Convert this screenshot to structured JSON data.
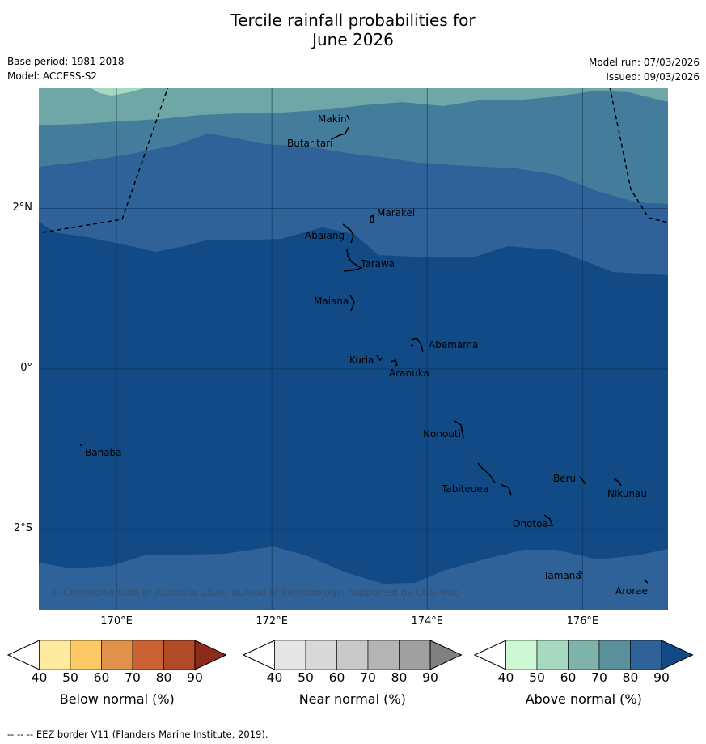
{
  "title": {
    "line1": "Tercile rainfall probabilities for",
    "line2": "June 2026"
  },
  "meta": {
    "base_period": "Base period: 1981-2018",
    "model": "Model: ACCESS-S2",
    "model_run": "Model run: 07/03/2026",
    "issued": "Issued: 09/03/2026"
  },
  "map": {
    "lon_range": [
      169,
      177.1
    ],
    "lat_range": [
      -3.0,
      3.5
    ],
    "lat_ticks": [
      {
        "lat": 2,
        "label": "2°N"
      },
      {
        "lat": 0,
        "label": "0°"
      },
      {
        "lat": -2,
        "label": "2°S"
      }
    ],
    "lon_ticks": [
      {
        "lon": 170,
        "label": "170°E"
      },
      {
        "lon": 172,
        "label": "172°E"
      },
      {
        "lon": 174,
        "label": "174°E"
      },
      {
        "lon": 176,
        "label": "176°E"
      }
    ],
    "colors": {
      "above_90": "#124a85",
      "above_80": "#2e6298",
      "above_70": "#437d9b",
      "above_60": "#6fa6a6",
      "above_50": "#a6d9bf"
    },
    "islands": [
      {
        "name": "Makin"
      },
      {
        "name": "Butaritari"
      },
      {
        "name": "Marakei"
      },
      {
        "name": "Abaiang"
      },
      {
        "name": "Tarawa"
      },
      {
        "name": "Maiana"
      },
      {
        "name": "Abemama"
      },
      {
        "name": "Kuria"
      },
      {
        "name": "Aranuka"
      },
      {
        "name": "Nonouti"
      },
      {
        "name": "Banaba"
      },
      {
        "name": "Beru"
      },
      {
        "name": "Tabiteuea"
      },
      {
        "name": "Nikunau"
      },
      {
        "name": "Onotoa"
      },
      {
        "name": "Tamana"
      },
      {
        "name": "Arorae"
      }
    ],
    "copyright": "© Commonwealth of Australia 2026, Bureau of Meteorology, supported by COSPPac"
  },
  "colorbars": [
    {
      "name": "below",
      "label": "Below normal (%)",
      "ticks": [
        "40",
        "50",
        "60",
        "70",
        "80",
        "90"
      ],
      "colors": [
        "#ffffff",
        "#ffeba0",
        "#fdc964",
        "#e1914a",
        "#cc6133",
        "#b04a27",
        "#8c2b1c"
      ]
    },
    {
      "name": "near",
      "label": "Near normal (%)",
      "ticks": [
        "40",
        "50",
        "60",
        "70",
        "80",
        "90"
      ],
      "colors": [
        "#ffffff",
        "#e6e6e6",
        "#d8d8d8",
        "#c9c9c9",
        "#b4b4b4",
        "#a0a0a0",
        "#808080"
      ]
    },
    {
      "name": "above",
      "label": "Above normal (%)",
      "ticks": [
        "40",
        "50",
        "60",
        "70",
        "80",
        "90"
      ],
      "colors": [
        "#ffffff",
        "#ccf8d4",
        "#a6d9bf",
        "#7eb3a9",
        "#5a8f9c",
        "#2e6298",
        "#124a85"
      ]
    }
  ],
  "footnote": "-- -- -- EEZ border V11 (Flanders Marine Institute, 2019)."
}
